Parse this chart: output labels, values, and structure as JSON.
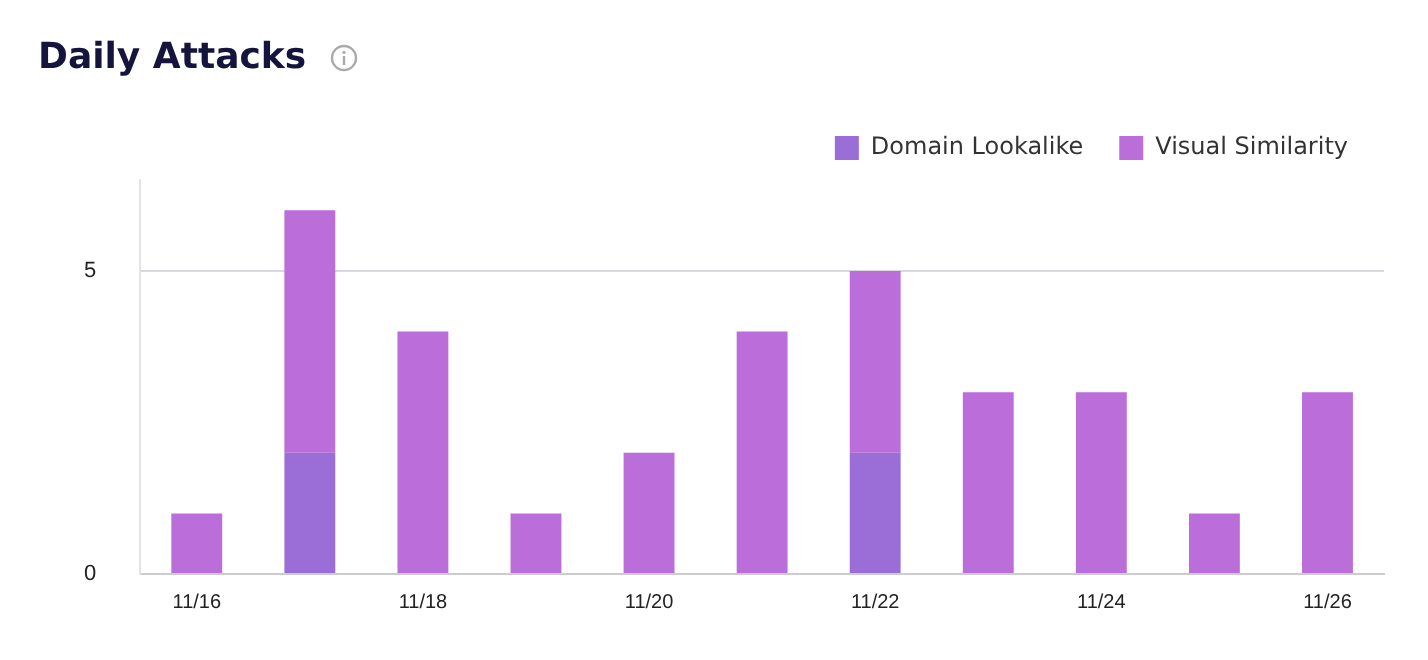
{
  "chart_data": {
    "type": "bar",
    "title": "Daily Attacks",
    "stacked": true,
    "categories": [
      "11/16",
      null,
      "11/18",
      null,
      "11/20",
      null,
      "11/22",
      null,
      "11/24",
      null,
      "11/26"
    ],
    "series": [
      {
        "name": "Domain Lookalike",
        "color": "#9b6dd6",
        "values": [
          0,
          2,
          0,
          0,
          0,
          0,
          2,
          0,
          0,
          0,
          0
        ]
      },
      {
        "name": "Visual Similarity",
        "color": "#bb6dd9",
        "values": [
          1,
          4,
          4,
          1,
          2,
          4,
          3,
          3,
          3,
          1,
          3
        ]
      }
    ],
    "ylim": [
      0,
      6.5
    ],
    "yticks": [
      0,
      5
    ],
    "grid": "y",
    "legend": "top right"
  }
}
